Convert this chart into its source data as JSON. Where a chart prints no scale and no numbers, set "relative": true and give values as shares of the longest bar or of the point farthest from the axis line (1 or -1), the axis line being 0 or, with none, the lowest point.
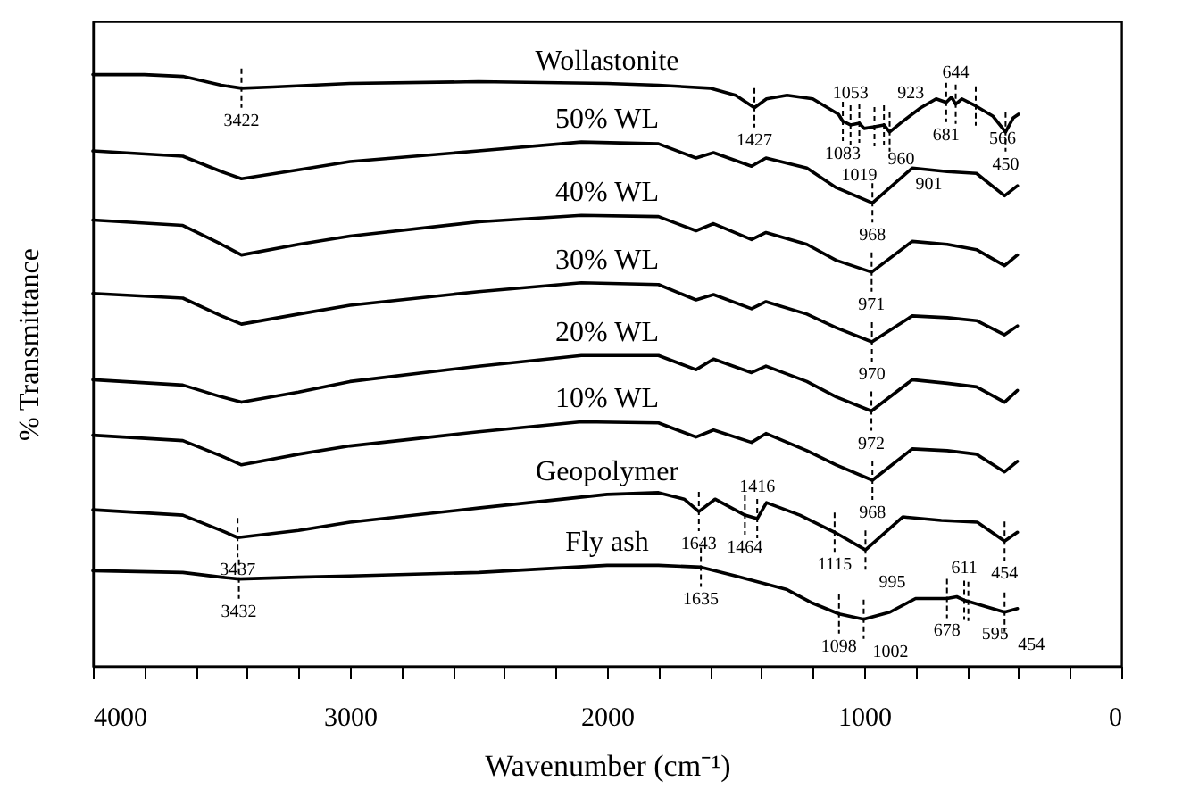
{
  "chart_data": {
    "type": "line",
    "relative": true,
    "xlabel": "Wavenumber (cm⁻¹)",
    "ylabel": "% Transmittance",
    "xlim": [
      4000,
      0
    ],
    "xticks": [
      4000,
      {
        "value": 3800,
        "label": null
      },
      {
        "value": 3600,
        "label": null
      },
      {
        "value": 3400,
        "label": null
      },
      {
        "value": 3200,
        "label": null
      },
      3000,
      {
        "value": 2800,
        "label": null
      },
      {
        "value": 2600,
        "label": null
      },
      {
        "value": 2400,
        "label": null
      },
      {
        "value": 2200,
        "label": null
      },
      2000,
      {
        "value": 1800,
        "label": null
      },
      {
        "value": 1600,
        "label": null
      },
      {
        "value": 1400,
        "label": null
      },
      {
        "value": 1200,
        "label": null
      },
      1000,
      {
        "value": 800,
        "label": null
      },
      {
        "value": 600,
        "label": null
      },
      {
        "value": 400,
        "label": null
      },
      {
        "value": 200,
        "label": null
      },
      0
    ],
    "tick_labels": "x",
    "series": [
      {
        "name": "Wollastonite",
        "color": "#000000",
        "x": [
          4000,
          3800,
          3650,
          3500,
          3422,
          3300,
          3000,
          2500,
          2000,
          1800,
          1600,
          1500,
          1427,
          1380,
          1300,
          1200,
          1100,
          1083,
          1053,
          1019,
          1000,
          960,
          923,
          901,
          850,
          780,
          720,
          681,
          660,
          644,
          620,
          566,
          500,
          450,
          420,
          400
        ],
        "values": [
          1.0,
          1.0,
          0.997,
          0.982,
          0.977,
          0.979,
          0.985,
          0.988,
          0.985,
          0.982,
          0.977,
          0.965,
          0.944,
          0.959,
          0.965,
          0.959,
          0.933,
          0.921,
          0.915,
          0.918,
          0.909,
          0.912,
          0.915,
          0.903,
          0.921,
          0.944,
          0.959,
          0.953,
          0.962,
          0.95,
          0.959,
          0.947,
          0.93,
          0.903,
          0.927,
          0.933
        ]
      },
      {
        "name": "50% WL",
        "color": "#000000",
        "x": [
          4000,
          3650,
          3500,
          3422,
          3200,
          3000,
          2500,
          2100,
          1800,
          1654,
          1586,
          1438,
          1382,
          1223,
          1109,
          968,
          813,
          677,
          563,
          454,
          404
        ],
        "values": [
          0.871,
          0.862,
          0.836,
          0.824,
          0.839,
          0.853,
          0.871,
          0.886,
          0.883,
          0.859,
          0.868,
          0.845,
          0.859,
          0.842,
          0.809,
          0.783,
          0.842,
          0.836,
          0.833,
          0.795,
          0.812
        ]
      },
      {
        "name": "40% WL",
        "color": "#000000",
        "x": [
          4000,
          3650,
          3500,
          3422,
          3200,
          3000,
          2500,
          2100,
          1800,
          1654,
          1586,
          1438,
          1382,
          1223,
          1109,
          971,
          813,
          677,
          563,
          454,
          404
        ],
        "values": [
          0.754,
          0.745,
          0.713,
          0.695,
          0.713,
          0.727,
          0.751,
          0.762,
          0.76,
          0.736,
          0.748,
          0.721,
          0.733,
          0.713,
          0.686,
          0.666,
          0.718,
          0.713,
          0.704,
          0.677,
          0.695
        ]
      },
      {
        "name": "30% WL",
        "color": "#000000",
        "x": [
          4000,
          3650,
          3500,
          3422,
          3200,
          3000,
          2500,
          2100,
          1800,
          1654,
          1586,
          1438,
          1382,
          1223,
          1109,
          970,
          813,
          677,
          563,
          454,
          404
        ],
        "values": [
          0.63,
          0.622,
          0.592,
          0.578,
          0.595,
          0.61,
          0.633,
          0.648,
          0.645,
          0.619,
          0.628,
          0.604,
          0.616,
          0.595,
          0.572,
          0.548,
          0.592,
          0.589,
          0.584,
          0.56,
          0.575
        ]
      },
      {
        "name": "20% WL",
        "color": "#000000",
        "x": [
          4000,
          3650,
          3500,
          3422,
          3200,
          3000,
          2500,
          2100,
          1800,
          1654,
          1586,
          1438,
          1382,
          1223,
          1109,
          972,
          813,
          677,
          563,
          454,
          404
        ],
        "values": [
          0.484,
          0.475,
          0.455,
          0.446,
          0.463,
          0.481,
          0.507,
          0.525,
          0.525,
          0.501,
          0.519,
          0.496,
          0.507,
          0.481,
          0.455,
          0.431,
          0.484,
          0.478,
          0.472,
          0.446,
          0.466
        ]
      },
      {
        "name": "10% WL",
        "color": "#000000",
        "x": [
          4000,
          3650,
          3500,
          3422,
          3200,
          3000,
          2500,
          2100,
          1800,
          1654,
          1586,
          1438,
          1382,
          1223,
          1109,
          968,
          813,
          677,
          563,
          454,
          404
        ],
        "values": [
          0.39,
          0.381,
          0.355,
          0.34,
          0.358,
          0.372,
          0.396,
          0.413,
          0.411,
          0.387,
          0.399,
          0.378,
          0.393,
          0.364,
          0.34,
          0.314,
          0.367,
          0.364,
          0.358,
          0.328,
          0.346
        ]
      },
      {
        "name": "Geopolymer",
        "color": "#000000",
        "x": [
          4000,
          3650,
          3500,
          3437,
          3200,
          3000,
          2500,
          2000,
          1800,
          1700,
          1643,
          1580,
          1464,
          1416,
          1380,
          1250,
          1115,
          995,
          850,
          700,
          560,
          454,
          404
        ],
        "values": [
          0.264,
          0.255,
          0.229,
          0.217,
          0.229,
          0.243,
          0.267,
          0.29,
          0.293,
          0.282,
          0.261,
          0.282,
          0.255,
          0.249,
          0.276,
          0.255,
          0.226,
          0.196,
          0.252,
          0.246,
          0.243,
          0.211,
          0.226
        ]
      },
      {
        "name": "Fly ash",
        "color": "#000000",
        "x": [
          4000,
          3650,
          3500,
          3432,
          3200,
          3000,
          2500,
          2000,
          1800,
          1635,
          1500,
          1300,
          1200,
          1098,
          1002,
          900,
          800,
          678,
          640,
          611,
          595,
          454,
          404
        ],
        "values": [
          0.161,
          0.158,
          0.15,
          0.147,
          0.15,
          0.152,
          0.158,
          0.17,
          0.17,
          0.167,
          0.152,
          0.129,
          0.106,
          0.088,
          0.079,
          0.091,
          0.114,
          0.114,
          0.117,
          0.111,
          0.109,
          0.091,
          0.097
        ]
      }
    ],
    "annotations": [
      {
        "text": "3422",
        "x": 3422,
        "y": 0.977
      },
      {
        "text": "1427",
        "x": 1427,
        "y": 0.944
      },
      {
        "text": "1083",
        "x": 1083,
        "y": 0.921
      },
      {
        "text": "1053",
        "x": 1053,
        "y": 0.915
      },
      {
        "text": "1019",
        "x": 1019,
        "y": 0.918
      },
      {
        "text": "960",
        "x": 960,
        "y": 0.912
      },
      {
        "text": "923",
        "x": 923,
        "y": 0.915
      },
      {
        "text": "901",
        "x": 901,
        "y": 0.903
      },
      {
        "text": "681",
        "x": 681,
        "y": 0.953
      },
      {
        "text": "644",
        "x": 644,
        "y": 0.95
      },
      {
        "text": "566",
        "x": 566,
        "y": 0.947
      },
      {
        "text": "450",
        "x": 450,
        "y": 0.903
      },
      {
        "text": "968",
        "x": 968,
        "y": 0.783
      },
      {
        "text": "971",
        "x": 971,
        "y": 0.666
      },
      {
        "text": "970",
        "x": 970,
        "y": 0.548
      },
      {
        "text": "972",
        "x": 972,
        "y": 0.431
      },
      {
        "text": "968",
        "x": 968,
        "y": 0.314
      },
      {
        "text": "3437",
        "x": 3437,
        "y": 0.217
      },
      {
        "text": "1643",
        "x": 1643,
        "y": 0.261
      },
      {
        "text": "1464",
        "x": 1464,
        "y": 0.255
      },
      {
        "text": "1416",
        "x": 1416,
        "y": 0.249
      },
      {
        "text": "1115",
        "x": 1115,
        "y": 0.226
      },
      {
        "text": "995",
        "x": 995,
        "y": 0.196
      },
      {
        "text": "454",
        "x": 454,
        "y": 0.211
      },
      {
        "text": "3432",
        "x": 3432,
        "y": 0.147
      },
      {
        "text": "1635",
        "x": 1635,
        "y": 0.167
      },
      {
        "text": "1098",
        "x": 1098,
        "y": 0.088
      },
      {
        "text": "1002",
        "x": 1002,
        "y": 0.079
      },
      {
        "text": "678",
        "x": 678,
        "y": 0.114
      },
      {
        "text": "611",
        "x": 611,
        "y": 0.111
      },
      {
        "text": "595",
        "x": 595,
        "y": 0.109
      },
      {
        "text": "454",
        "x": 454,
        "y": 0.091
      }
    ]
  }
}
